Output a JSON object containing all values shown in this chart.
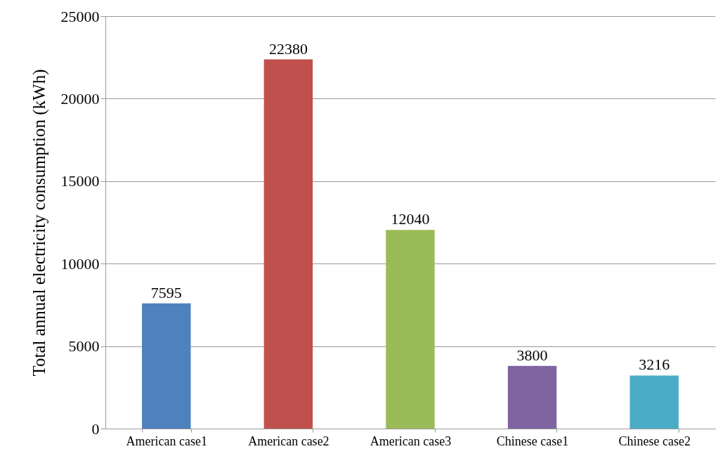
{
  "chart_data": {
    "type": "bar",
    "ylabel": "Total annual electricity consumption (kWh)",
    "categories": [
      "American case1",
      "American case2",
      "American case3",
      "Chinese case1",
      "Chinese case2"
    ],
    "values": [
      7595,
      22380,
      12040,
      3800,
      3216
    ],
    "colors": [
      "#4f81bd",
      "#c0504d",
      "#9bbb59",
      "#8064a2",
      "#4bacc6"
    ],
    "ylim": [
      0,
      25000
    ],
    "yticks": [
      0,
      5000,
      10000,
      15000,
      20000,
      25000
    ],
    "grid": "y",
    "data_labels": true
  }
}
